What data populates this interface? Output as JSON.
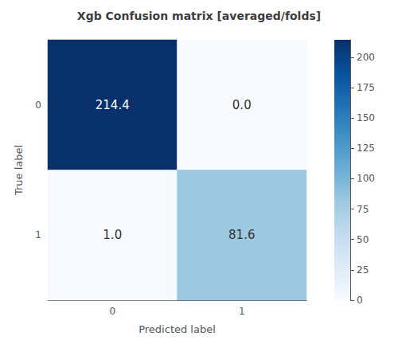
{
  "chart_data": {
    "type": "heatmap",
    "title": "Xgb Confusion matrix [averaged/folds]",
    "xlabel": "Predicted label",
    "ylabel": "True label",
    "categories": [
      "0",
      "1"
    ],
    "y_categories": [
      "0",
      "1"
    ],
    "matrix": [
      [
        214.4,
        0.0
      ],
      [
        1.0,
        81.6
      ]
    ],
    "value_labels": [
      [
        "214.4",
        "0.0"
      ],
      [
        "1.0",
        "81.6"
      ]
    ],
    "data_labels": true,
    "colorbar_range": [
      0,
      214.4
    ],
    "colorbar_ticks": [
      0,
      25,
      50,
      75,
      100,
      125,
      150,
      175,
      200
    ],
    "grid": false
  }
}
